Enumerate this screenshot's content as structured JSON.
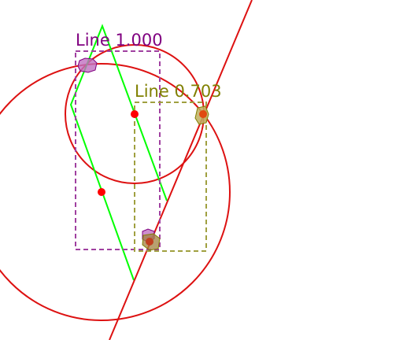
{
  "detections": [
    {
      "label_text": "Line 1.000",
      "color": "#800080"
    },
    {
      "label_text": "Line 0.703",
      "color": "#808000"
    }
  ],
  "colors": {
    "construction_line": "#00ff00",
    "circle": "#dd1111",
    "point": "#ff0000",
    "red_line": "#dd1111"
  }
}
